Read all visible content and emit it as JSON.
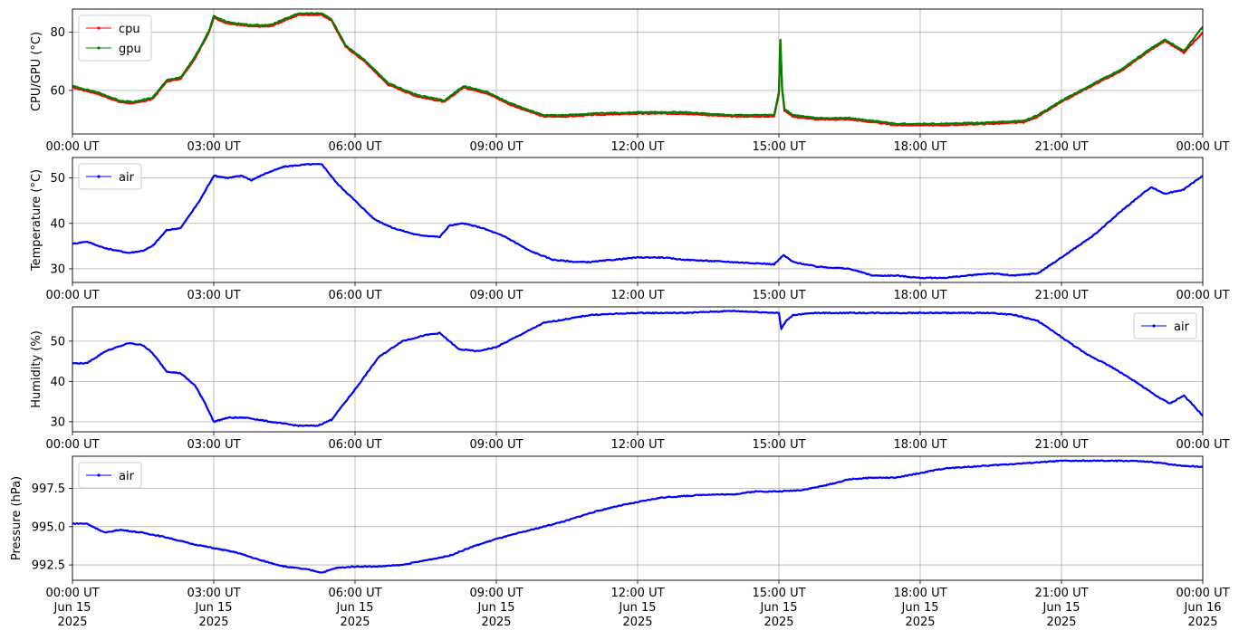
{
  "chart_data": [
    {
      "type": "line",
      "ylabel": "CPU/GPU (°C)",
      "ylim": [
        45,
        88
      ],
      "y_ticks": [
        60,
        80
      ],
      "legend_loc": "upper-left",
      "x_tick_labels": [
        "00:00 UT",
        "03:00 UT",
        "06:00 UT",
        "09:00 UT",
        "12:00 UT",
        "15:00 UT",
        "18:00 UT",
        "21:00 UT",
        "00:00 UT"
      ],
      "grid": true,
      "series": [
        {
          "name": "cpu",
          "color": "#ff0000",
          "x": [
            0,
            0.5,
            1,
            1.3,
            1.7,
            2,
            2.3,
            2.6,
            2.9,
            3,
            3.3,
            3.8,
            4.2,
            4.8,
            5.3,
            5.5,
            5.8,
            6.2,
            6.7,
            7.3,
            7.9,
            8.3,
            8.8,
            9.3,
            10,
            10.5,
            11,
            12,
            13,
            14,
            14.9,
            15,
            15.03,
            15.07,
            15.12,
            15.3,
            15.8,
            16.5,
            17,
            17.5,
            18.5,
            19.5,
            20.2,
            20.5,
            21,
            21.7,
            22.3,
            22.9,
            23.2,
            23.6,
            24
          ],
          "y": [
            61,
            59,
            56,
            55.5,
            57,
            63,
            64,
            71,
            80,
            85,
            83,
            82,
            82,
            86,
            86,
            84,
            75,
            70,
            62,
            58,
            56,
            61,
            59,
            55,
            51,
            51,
            51.5,
            52,
            52,
            51,
            51,
            59,
            77,
            60,
            53,
            51,
            50,
            50,
            49,
            48,
            48,
            48.5,
            49,
            51,
            56,
            62,
            67,
            74,
            77,
            73,
            80
          ]
        },
        {
          "name": "gpu",
          "color": "#008000",
          "x": [
            0,
            0.5,
            1,
            1.3,
            1.7,
            2,
            2.3,
            2.6,
            2.9,
            3,
            3.3,
            3.8,
            4.2,
            4.8,
            5.3,
            5.5,
            5.8,
            6.2,
            6.7,
            7.3,
            7.9,
            8.3,
            8.8,
            9.3,
            10,
            10.5,
            11,
            12,
            13,
            14,
            14.9,
            15,
            15.03,
            15.07,
            15.12,
            15.3,
            15.8,
            16.5,
            17,
            17.5,
            18.5,
            19.5,
            20.2,
            20.5,
            21,
            21.7,
            22.3,
            22.9,
            23.2,
            23.6,
            24
          ],
          "y": [
            61.5,
            59.5,
            56.5,
            56,
            57.5,
            63.5,
            64.5,
            71.5,
            80.5,
            85.5,
            83.5,
            82.5,
            82.5,
            86.5,
            86.5,
            84.5,
            75.5,
            70.5,
            62.5,
            58.5,
            56.5,
            61.5,
            59.5,
            55.5,
            51.5,
            51.5,
            52,
            52.5,
            52.5,
            51.5,
            51.5,
            59.5,
            77.5,
            60.5,
            53.5,
            51.5,
            50.5,
            50.5,
            49.5,
            48.5,
            48.5,
            49,
            49.5,
            51.5,
            56.5,
            62.5,
            67.5,
            74.5,
            77.5,
            73.5,
            82
          ]
        }
      ]
    },
    {
      "type": "line",
      "ylabel": "Temperature (°C)",
      "ylim": [
        27,
        54.5
      ],
      "y_ticks": [
        30,
        40,
        50
      ],
      "legend_loc": "upper-left",
      "x_tick_labels": [
        "00:00 UT",
        "03:00 UT",
        "06:00 UT",
        "09:00 UT",
        "12:00 UT",
        "15:00 UT",
        "18:00 UT",
        "21:00 UT",
        "00:00 UT"
      ],
      "grid": true,
      "series": [
        {
          "name": "air",
          "color": "#0000ff",
          "x": [
            0,
            0.3,
            0.7,
            1.2,
            1.5,
            1.7,
            2,
            2.3,
            2.5,
            2.7,
            3,
            3.3,
            3.6,
            3.8,
            4.1,
            4.5,
            5,
            5.3,
            5.6,
            6,
            6.4,
            6.8,
            7.3,
            7.8,
            8,
            8.3,
            8.7,
            9.2,
            9.7,
            10.2,
            10.7,
            11,
            11.5,
            12,
            12.5,
            13,
            14,
            14.9,
            15.1,
            15.3,
            15.8,
            16.5,
            17,
            17.5,
            18,
            18.5,
            19.5,
            20,
            20.5,
            21,
            21.7,
            22.3,
            22.9,
            23.2,
            23.6,
            24
          ],
          "y": [
            35.5,
            36,
            34.5,
            33.5,
            34,
            35,
            38.5,
            39,
            42,
            45,
            50.5,
            50,
            50.5,
            49.5,
            51,
            52.5,
            53,
            53,
            49,
            45,
            41,
            39,
            37.5,
            37,
            39.5,
            40,
            39,
            37,
            34,
            32,
            31.5,
            31.5,
            32,
            32.5,
            32.5,
            32,
            31.5,
            31,
            33,
            31.5,
            30.5,
            30,
            28.5,
            28.5,
            28,
            28,
            29,
            28.5,
            29,
            32.5,
            37.5,
            43,
            48,
            46.5,
            47.5,
            50.5
          ]
        }
      ]
    },
    {
      "type": "line",
      "ylabel": "Humidity (%)",
      "ylim": [
        27.5,
        58.5
      ],
      "y_ticks": [
        30,
        40,
        50
      ],
      "legend_loc": "upper-right",
      "x_tick_labels": [
        "00:00 UT",
        "03:00 UT",
        "06:00 UT",
        "09:00 UT",
        "12:00 UT",
        "15:00 UT",
        "18:00 UT",
        "21:00 UT",
        "00:00 UT"
      ],
      "grid": true,
      "series": [
        {
          "name": "air",
          "color": "#0000ff",
          "x": [
            0,
            0.3,
            0.7,
            1.2,
            1.5,
            1.7,
            2,
            2.3,
            2.6,
            2.8,
            3,
            3.3,
            3.7,
            4.2,
            4.8,
            5.2,
            5.5,
            6,
            6.5,
            7,
            7.5,
            7.8,
            8.2,
            8.6,
            9,
            9.5,
            10,
            11,
            12,
            13,
            14,
            15,
            15.05,
            15.15,
            15.3,
            15.8,
            16.5,
            17.5,
            18.5,
            19.5,
            20,
            20.5,
            21,
            21.5,
            22,
            22.5,
            23,
            23.3,
            23.6,
            24
          ],
          "y": [
            44.5,
            44.5,
            47.5,
            49.5,
            49,
            47,
            42.5,
            42,
            39,
            35,
            30,
            31,
            31,
            30,
            29,
            29,
            30.5,
            38,
            46,
            50,
            51.5,
            52,
            48,
            47.5,
            48.5,
            51.5,
            54.5,
            56.5,
            57,
            57,
            57.5,
            57,
            53,
            55,
            56.5,
            57,
            57,
            57,
            57,
            57,
            56.5,
            55,
            51,
            47,
            44,
            40.5,
            36.5,
            34.5,
            36.5,
            31.5
          ]
        }
      ]
    },
    {
      "type": "line",
      "ylabel": "Pressure (hPa)",
      "ylim": [
        991.5,
        999.6
      ],
      "y_ticks": [
        992.5,
        995.0,
        997.5
      ],
      "y_tick_labels": [
        "992.5",
        "995.0",
        "997.5"
      ],
      "legend_loc": "upper-left",
      "x_tick_labels": [
        [
          "00:00 UT",
          "Jun 15",
          "2025"
        ],
        [
          "03:00 UT",
          "Jun 15",
          "2025"
        ],
        [
          "06:00 UT",
          "Jun 15",
          "2025"
        ],
        [
          "09:00 UT",
          "Jun 15",
          "2025"
        ],
        [
          "12:00 UT",
          "Jun 15",
          "2025"
        ],
        [
          "15:00 UT",
          "Jun 15",
          "2025"
        ],
        [
          "18:00 UT",
          "Jun 15",
          "2025"
        ],
        [
          "21:00 UT",
          "Jun 15",
          "2025"
        ],
        [
          "00:00 UT",
          "Jun 16",
          "2025"
        ]
      ],
      "grid": true,
      "series": [
        {
          "name": "air",
          "color": "#0000ff",
          "x": [
            0,
            0.3,
            0.7,
            1,
            1.5,
            2,
            2.5,
            3,
            3.5,
            4,
            4.5,
            5,
            5.3,
            5.6,
            6,
            6.5,
            7,
            7.5,
            8,
            8.5,
            9,
            9.5,
            10,
            10.5,
            11,
            11.5,
            12,
            12.5,
            13,
            13.5,
            14,
            14.5,
            15,
            15.5,
            16,
            16.5,
            17,
            17.5,
            18,
            18.5,
            19,
            19.5,
            20,
            20.5,
            21,
            21.5,
            22,
            22.5,
            23,
            23.5,
            24
          ],
          "y": [
            995.2,
            995.2,
            994.6,
            994.8,
            994.6,
            994.3,
            993.9,
            993.6,
            993.3,
            992.8,
            992.4,
            992.2,
            992,
            992.3,
            992.4,
            992.4,
            992.5,
            992.8,
            993.1,
            993.7,
            994.2,
            994.6,
            995,
            995.4,
            995.9,
            996.3,
            996.6,
            996.9,
            997,
            997.1,
            997.1,
            997.3,
            997.3,
            997.4,
            997.7,
            998.1,
            998.2,
            998.2,
            998.5,
            998.8,
            998.9,
            999,
            999.1,
            999.2,
            999.3,
            999.3,
            999.3,
            999.3,
            999.2,
            999,
            998.9
          ]
        }
      ]
    }
  ]
}
